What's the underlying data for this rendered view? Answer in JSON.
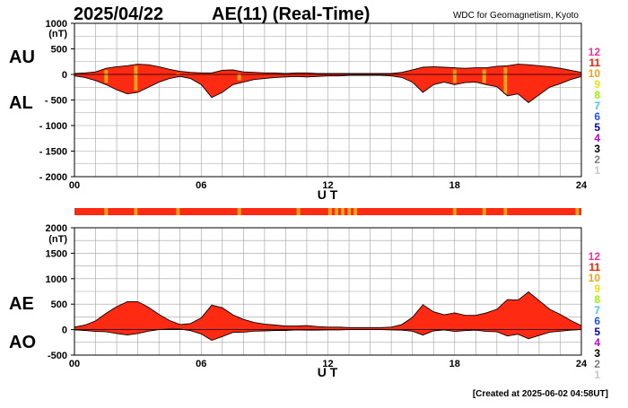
{
  "header": {
    "date": "2025/04/22",
    "title": "AE(11) (Real-Time)",
    "source": "WDC for Geomagnetism, Kyoto"
  },
  "footer": {
    "created": "[Created at 2025-06-02 04:58UT]"
  },
  "colors": {
    "fill": "#ff2a12",
    "stripe": "#f4a018",
    "grid": "#a0a0a0",
    "axis": "#000000"
  },
  "station_legend": [
    {
      "label": "12",
      "color": "#ff2aa0"
    },
    {
      "label": "11",
      "color": "#ff1e00"
    },
    {
      "label": "10",
      "color": "#ffa000"
    },
    {
      "label": "9",
      "color": "#f0e000"
    },
    {
      "label": "8",
      "color": "#a0f000"
    },
    {
      "label": "7",
      "color": "#40c8f0"
    },
    {
      "label": "6",
      "color": "#2050ff"
    },
    {
      "label": "5",
      "color": "#0000c8"
    },
    {
      "label": "4",
      "color": "#c800c8"
    },
    {
      "label": "3",
      "color": "#000000"
    },
    {
      "label": "2",
      "color": "#808080"
    },
    {
      "label": "1",
      "color": "#c8c8c8"
    }
  ],
  "chart_data": [
    {
      "type": "area",
      "panel": "AU/AL",
      "upper_label": "AU",
      "lower_label": "AL",
      "unit": "(nT)",
      "xlabel": "U T",
      "xlim": [
        0,
        24
      ],
      "x_ticks": [
        "00",
        "06",
        "12",
        "18",
        "24"
      ],
      "ylim": [
        -2000,
        1000
      ],
      "y_ticks": [
        1000,
        500,
        0,
        -500,
        -1000,
        -1500,
        -2000
      ],
      "y_tick_labels": [
        "1000",
        "500",
        "0",
        "- 500",
        "- 1000",
        "- 1500",
        "- 2000"
      ],
      "x": [
        0,
        0.5,
        1,
        1.5,
        2,
        2.5,
        3,
        3.5,
        4,
        4.5,
        5,
        5.5,
        6,
        6.5,
        7,
        7.5,
        8,
        8.5,
        9,
        9.5,
        10,
        10.5,
        11,
        11.5,
        12,
        12.5,
        13,
        13.5,
        14,
        14.5,
        15,
        15.5,
        16,
        16.5,
        17,
        17.5,
        18,
        18.5,
        19,
        19.5,
        20,
        20.5,
        21,
        21.5,
        22,
        22.5,
        23,
        23.5,
        24
      ],
      "series": [
        {
          "name": "AU",
          "values": [
            20,
            30,
            50,
            120,
            150,
            170,
            200,
            190,
            150,
            100,
            60,
            40,
            30,
            30,
            80,
            90,
            50,
            40,
            30,
            30,
            20,
            30,
            30,
            20,
            20,
            20,
            20,
            20,
            20,
            20,
            20,
            40,
            90,
            140,
            150,
            140,
            130,
            120,
            130,
            130,
            160,
            170,
            200,
            190,
            170,
            150,
            120,
            80,
            40
          ]
        },
        {
          "name": "AL",
          "values": [
            -30,
            -60,
            -120,
            -200,
            -300,
            -380,
            -350,
            -250,
            -150,
            -80,
            -40,
            -80,
            -200,
            -450,
            -350,
            -200,
            -150,
            -100,
            -80,
            -60,
            -50,
            -40,
            -50,
            -40,
            -30,
            -30,
            -20,
            -20,
            -20,
            -20,
            -30,
            -60,
            -150,
            -350,
            -200,
            -150,
            -200,
            -160,
            -150,
            -200,
            -240,
            -420,
            -380,
            -550,
            -400,
            -250,
            -180,
            -100,
            -40
          ]
        }
      ],
      "stripes": [
        1.5,
        2.9,
        4.9,
        7.8,
        13.6,
        18,
        19.4,
        20.4,
        23.8
      ]
    },
    {
      "type": "area",
      "panel": "AE/AO",
      "upper_label": "AE",
      "lower_label": "AO",
      "unit": "(nT)",
      "xlabel": "U T",
      "xlim": [
        0,
        24
      ],
      "x_ticks": [
        "00",
        "06",
        "12",
        "18",
        "24"
      ],
      "ylim": [
        -500,
        2000
      ],
      "y_ticks": [
        2000,
        1500,
        1000,
        500,
        0,
        -500
      ],
      "y_tick_labels": [
        "2000",
        "1500",
        "1000",
        "500",
        "0",
        "-500"
      ],
      "x": [
        0,
        0.5,
        1,
        1.5,
        2,
        2.5,
        3,
        3.5,
        4,
        4.5,
        5,
        5.5,
        6,
        6.5,
        7,
        7.5,
        8,
        8.5,
        9,
        9.5,
        10,
        10.5,
        11,
        11.5,
        12,
        12.5,
        13,
        13.5,
        14,
        14.5,
        15,
        15.5,
        16,
        16.5,
        17,
        17.5,
        18,
        18.5,
        19,
        19.5,
        20,
        20.5,
        21,
        21.5,
        22,
        22.5,
        23,
        23.5,
        24
      ],
      "series": [
        {
          "name": "AE",
          "values": [
            50,
            90,
            170,
            320,
            450,
            550,
            550,
            440,
            300,
            180,
            100,
            120,
            230,
            480,
            430,
            290,
            200,
            140,
            110,
            90,
            70,
            70,
            80,
            60,
            50,
            50,
            40,
            40,
            40,
            40,
            50,
            100,
            240,
            490,
            350,
            290,
            330,
            280,
            280,
            330,
            400,
            590,
            580,
            740,
            570,
            400,
            300,
            180,
            80
          ]
        },
        {
          "name": "AO",
          "values": [
            -5,
            -15,
            -35,
            -40,
            -75,
            -105,
            -75,
            -30,
            0,
            10,
            10,
            -20,
            -85,
            -210,
            -135,
            -55,
            -50,
            -30,
            -25,
            -15,
            -15,
            -5,
            -10,
            -10,
            -5,
            -5,
            0,
            0,
            0,
            0,
            -5,
            -10,
            -30,
            -105,
            -25,
            -5,
            -35,
            -20,
            -10,
            -35,
            -40,
            -125,
            -90,
            -180,
            -115,
            -50,
            -30,
            -10,
            0
          ]
        }
      ],
      "status_bar_stripes": [
        1.5,
        2.9,
        4.9,
        7.8,
        10.6,
        12.1,
        12.4,
        12.7,
        13.0,
        13.3,
        18,
        19.4,
        20.4,
        23.8
      ]
    }
  ]
}
